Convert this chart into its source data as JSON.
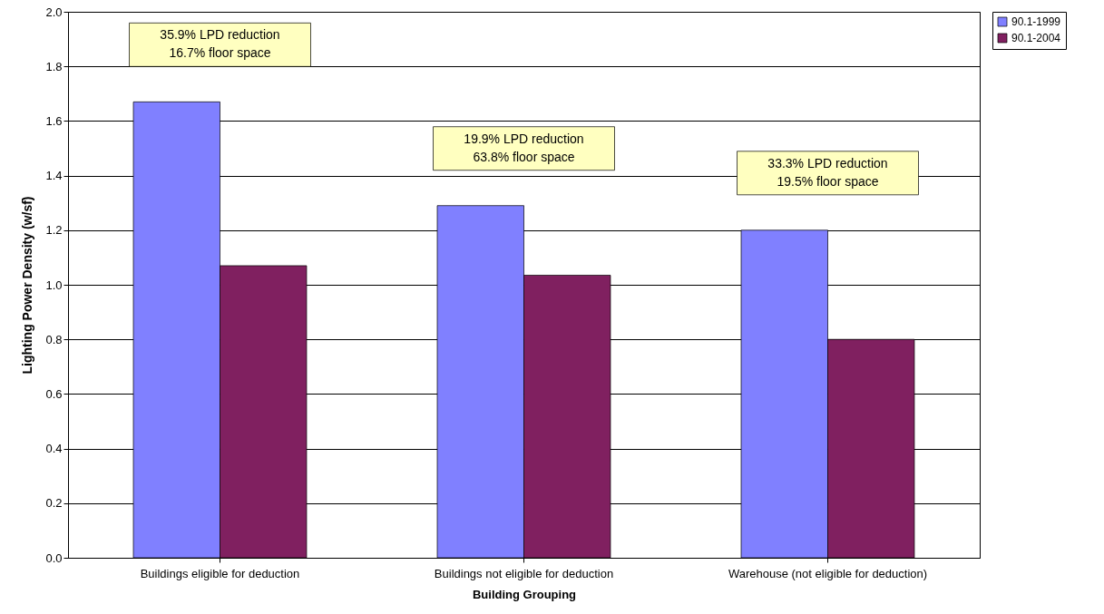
{
  "chart_data": {
    "type": "bar",
    "xlabel": "Building Grouping",
    "ylabel": "Lighting Power Density (w/sf)",
    "categories": [
      "Buildings eligible for deduction",
      "Buildings not eligible for deduction",
      "Warehouse (not eligible for deduction)"
    ],
    "series": [
      {
        "name": "90.1-1999",
        "color": "#8080ff",
        "values": [
          1.67,
          1.29,
          1.2
        ]
      },
      {
        "name": "90.1-2004",
        "color": "#802060",
        "values": [
          1.07,
          1.035,
          0.8
        ]
      }
    ],
    "ylim": [
      0,
      2
    ],
    "yticks": [
      {
        "value": 0,
        "label": "0.0"
      },
      {
        "value": 0.2,
        "label": "0.2"
      },
      {
        "value": 0.4,
        "label": "0.4"
      },
      {
        "value": 0.6,
        "label": "0.6"
      },
      {
        "value": 0.8,
        "label": "0.8"
      },
      {
        "value": 1,
        "label": "1.0"
      },
      {
        "value": 1.2,
        "label": "1.2"
      },
      {
        "value": 1.4,
        "label": "1.4"
      },
      {
        "value": 1.6,
        "label": "1.6"
      },
      {
        "value": 1.8,
        "label": "1.8"
      },
      {
        "value": 2,
        "label": "2.0"
      }
    ],
    "grid": "y",
    "legend": "right",
    "annotations": [
      "35.9% LPD reduction\n16.7% floor space",
      "19.9% LPD reduction\n63.8% floor space",
      "33.3% LPD reduction\n19.5% floor space"
    ]
  }
}
